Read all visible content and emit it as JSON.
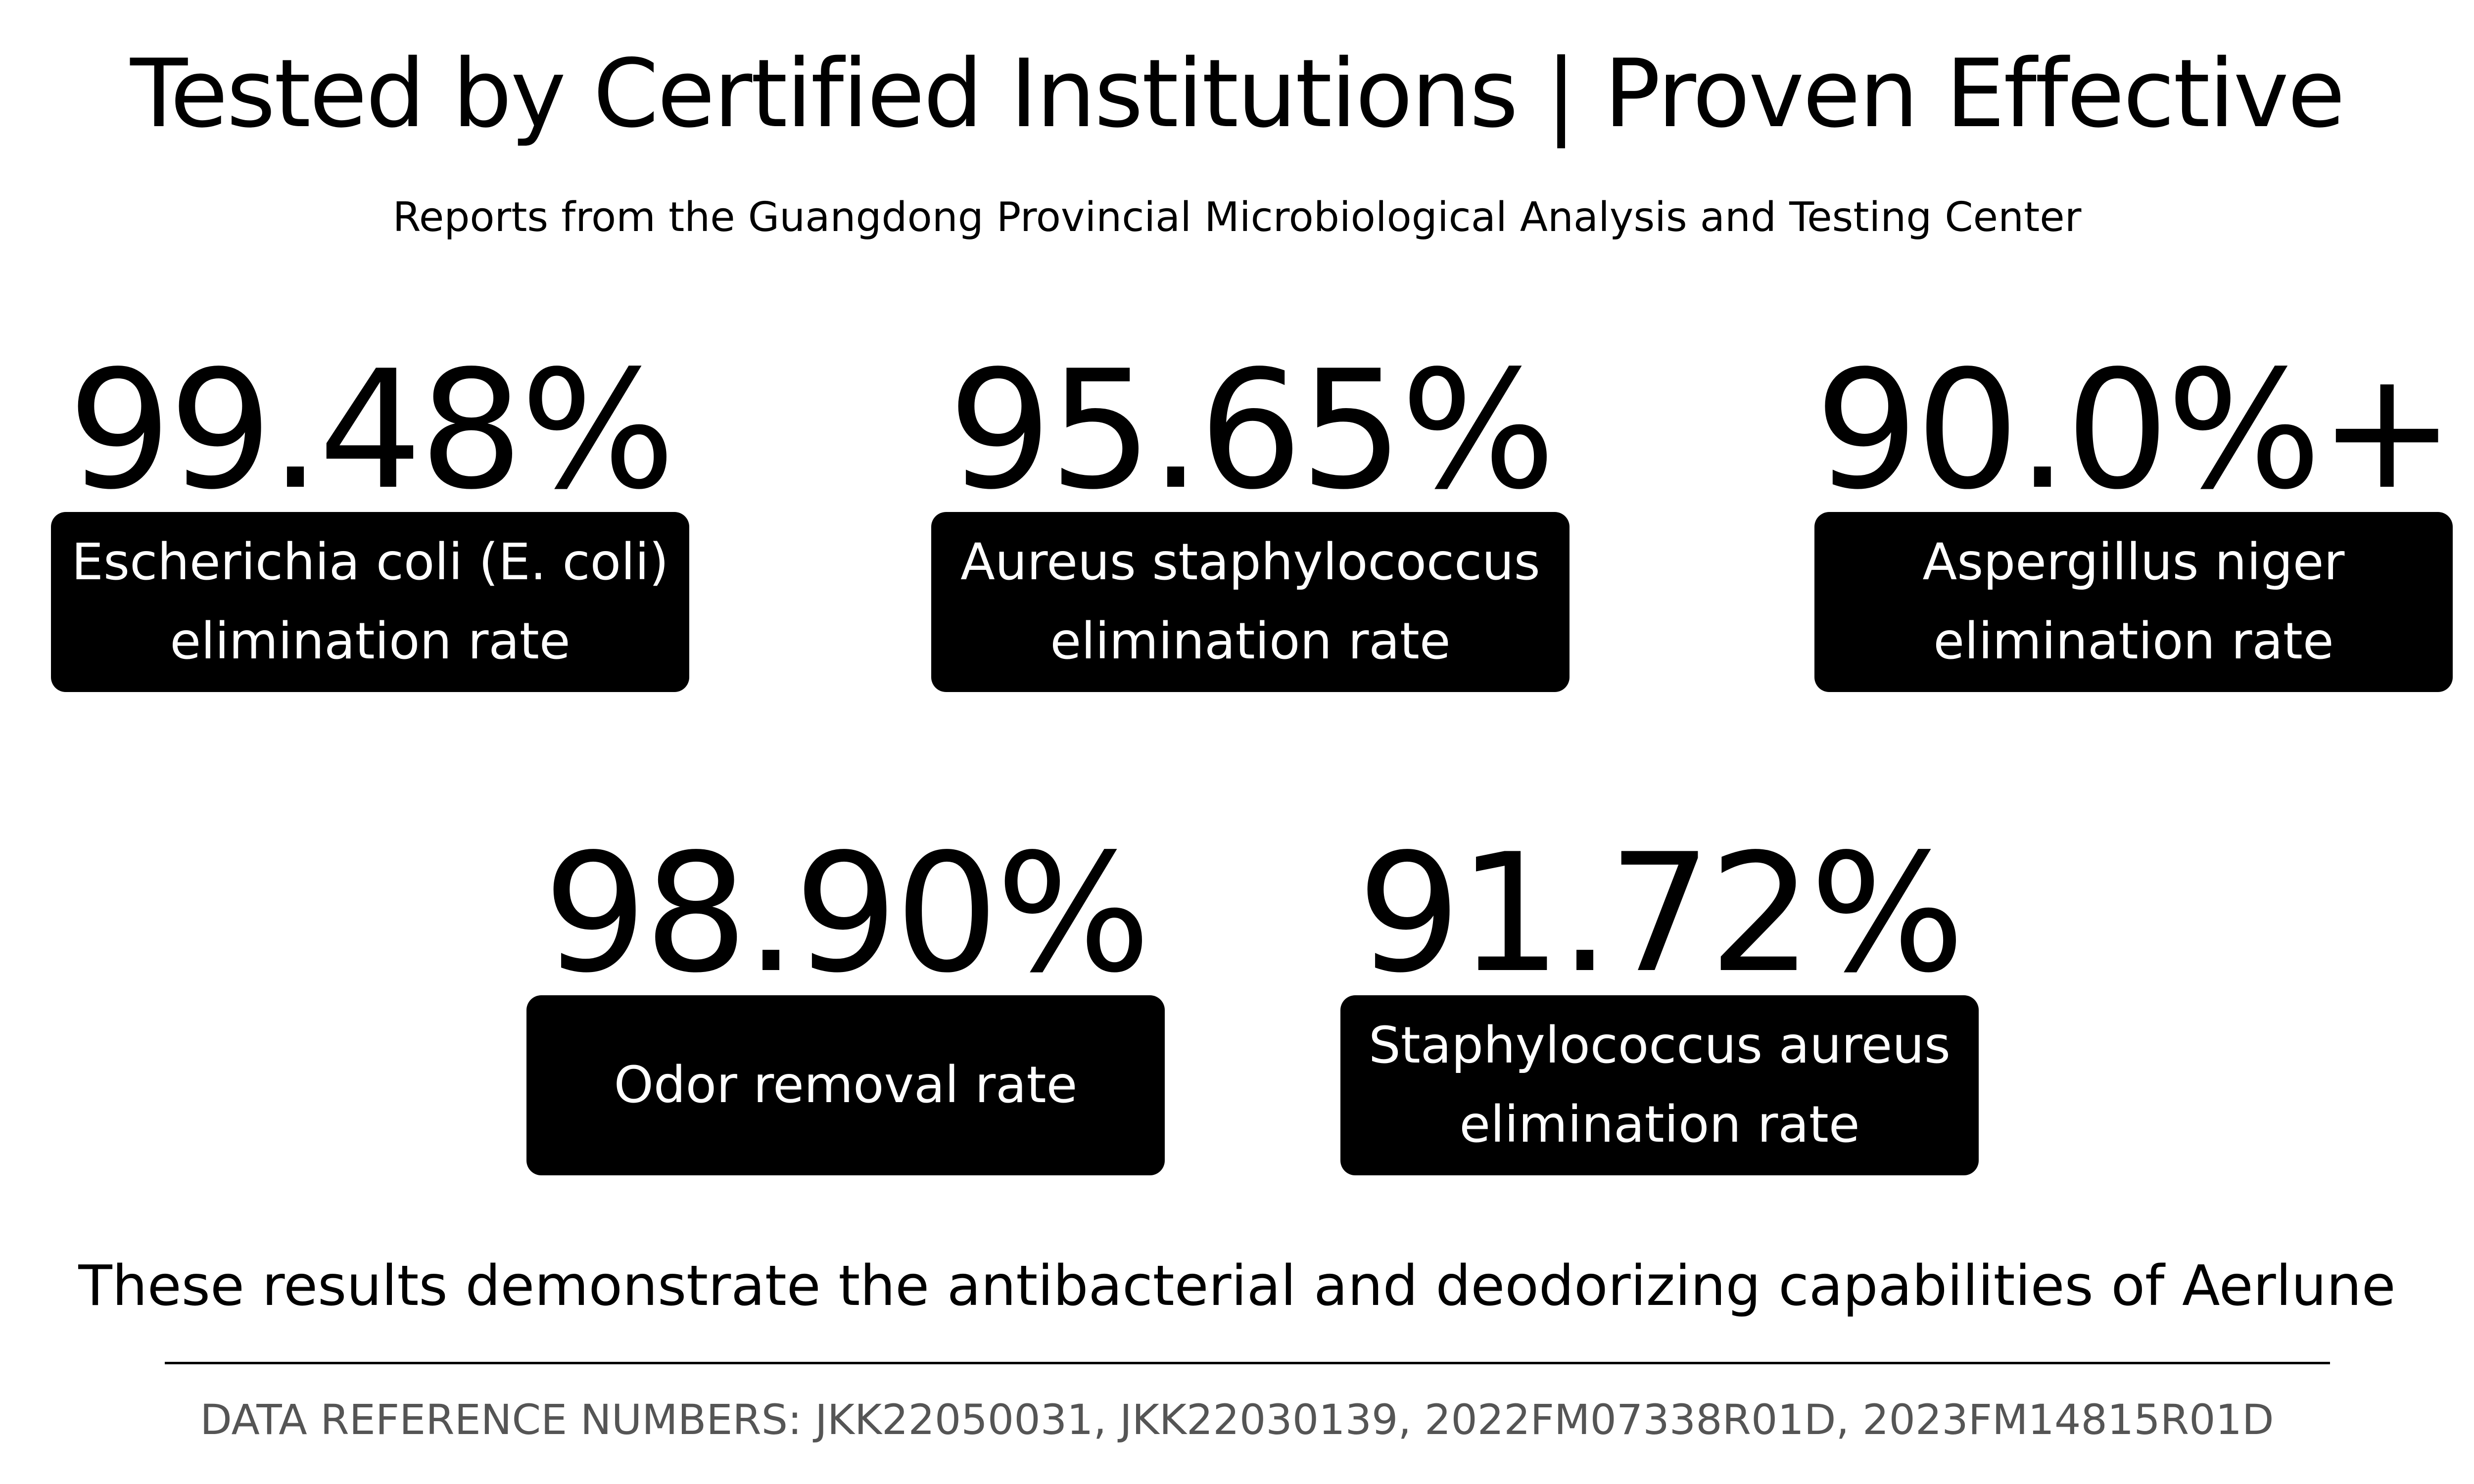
{
  "header": {
    "title": "Tested by Certified Institutions | Proven Effective",
    "subtitle": "Reports from the Guangdong Provincial Microbiological Analysis and Testing Center"
  },
  "stats": [
    {
      "value": "99.48%",
      "label": "Escherichia coli (E. coli)\nelimination rate"
    },
    {
      "value": "95.65%",
      "label": "Aureus staphylococcus\nelimination rate"
    },
    {
      "value": "90.0%+",
      "label": "Aspergillus niger\nelimination rate"
    },
    {
      "value": "98.90%",
      "label": "Odor removal rate"
    },
    {
      "value": "91.72%",
      "label": "Staphylococcus aureus\nelimination rate"
    }
  ],
  "footer": {
    "statement": "These results demonstrate the antibacterial and deodorizing capabilities of Aerlune",
    "references": "DATA REFERENCE NUMBERS: JKK22050031, JKK22030139, 2022FM07338R01D, 2023FM14815R01D"
  },
  "colors": {
    "background": "#ffffff",
    "text": "#000000",
    "label_background": "#000000",
    "label_text": "#ffffff",
    "reference_text": "#555555"
  }
}
